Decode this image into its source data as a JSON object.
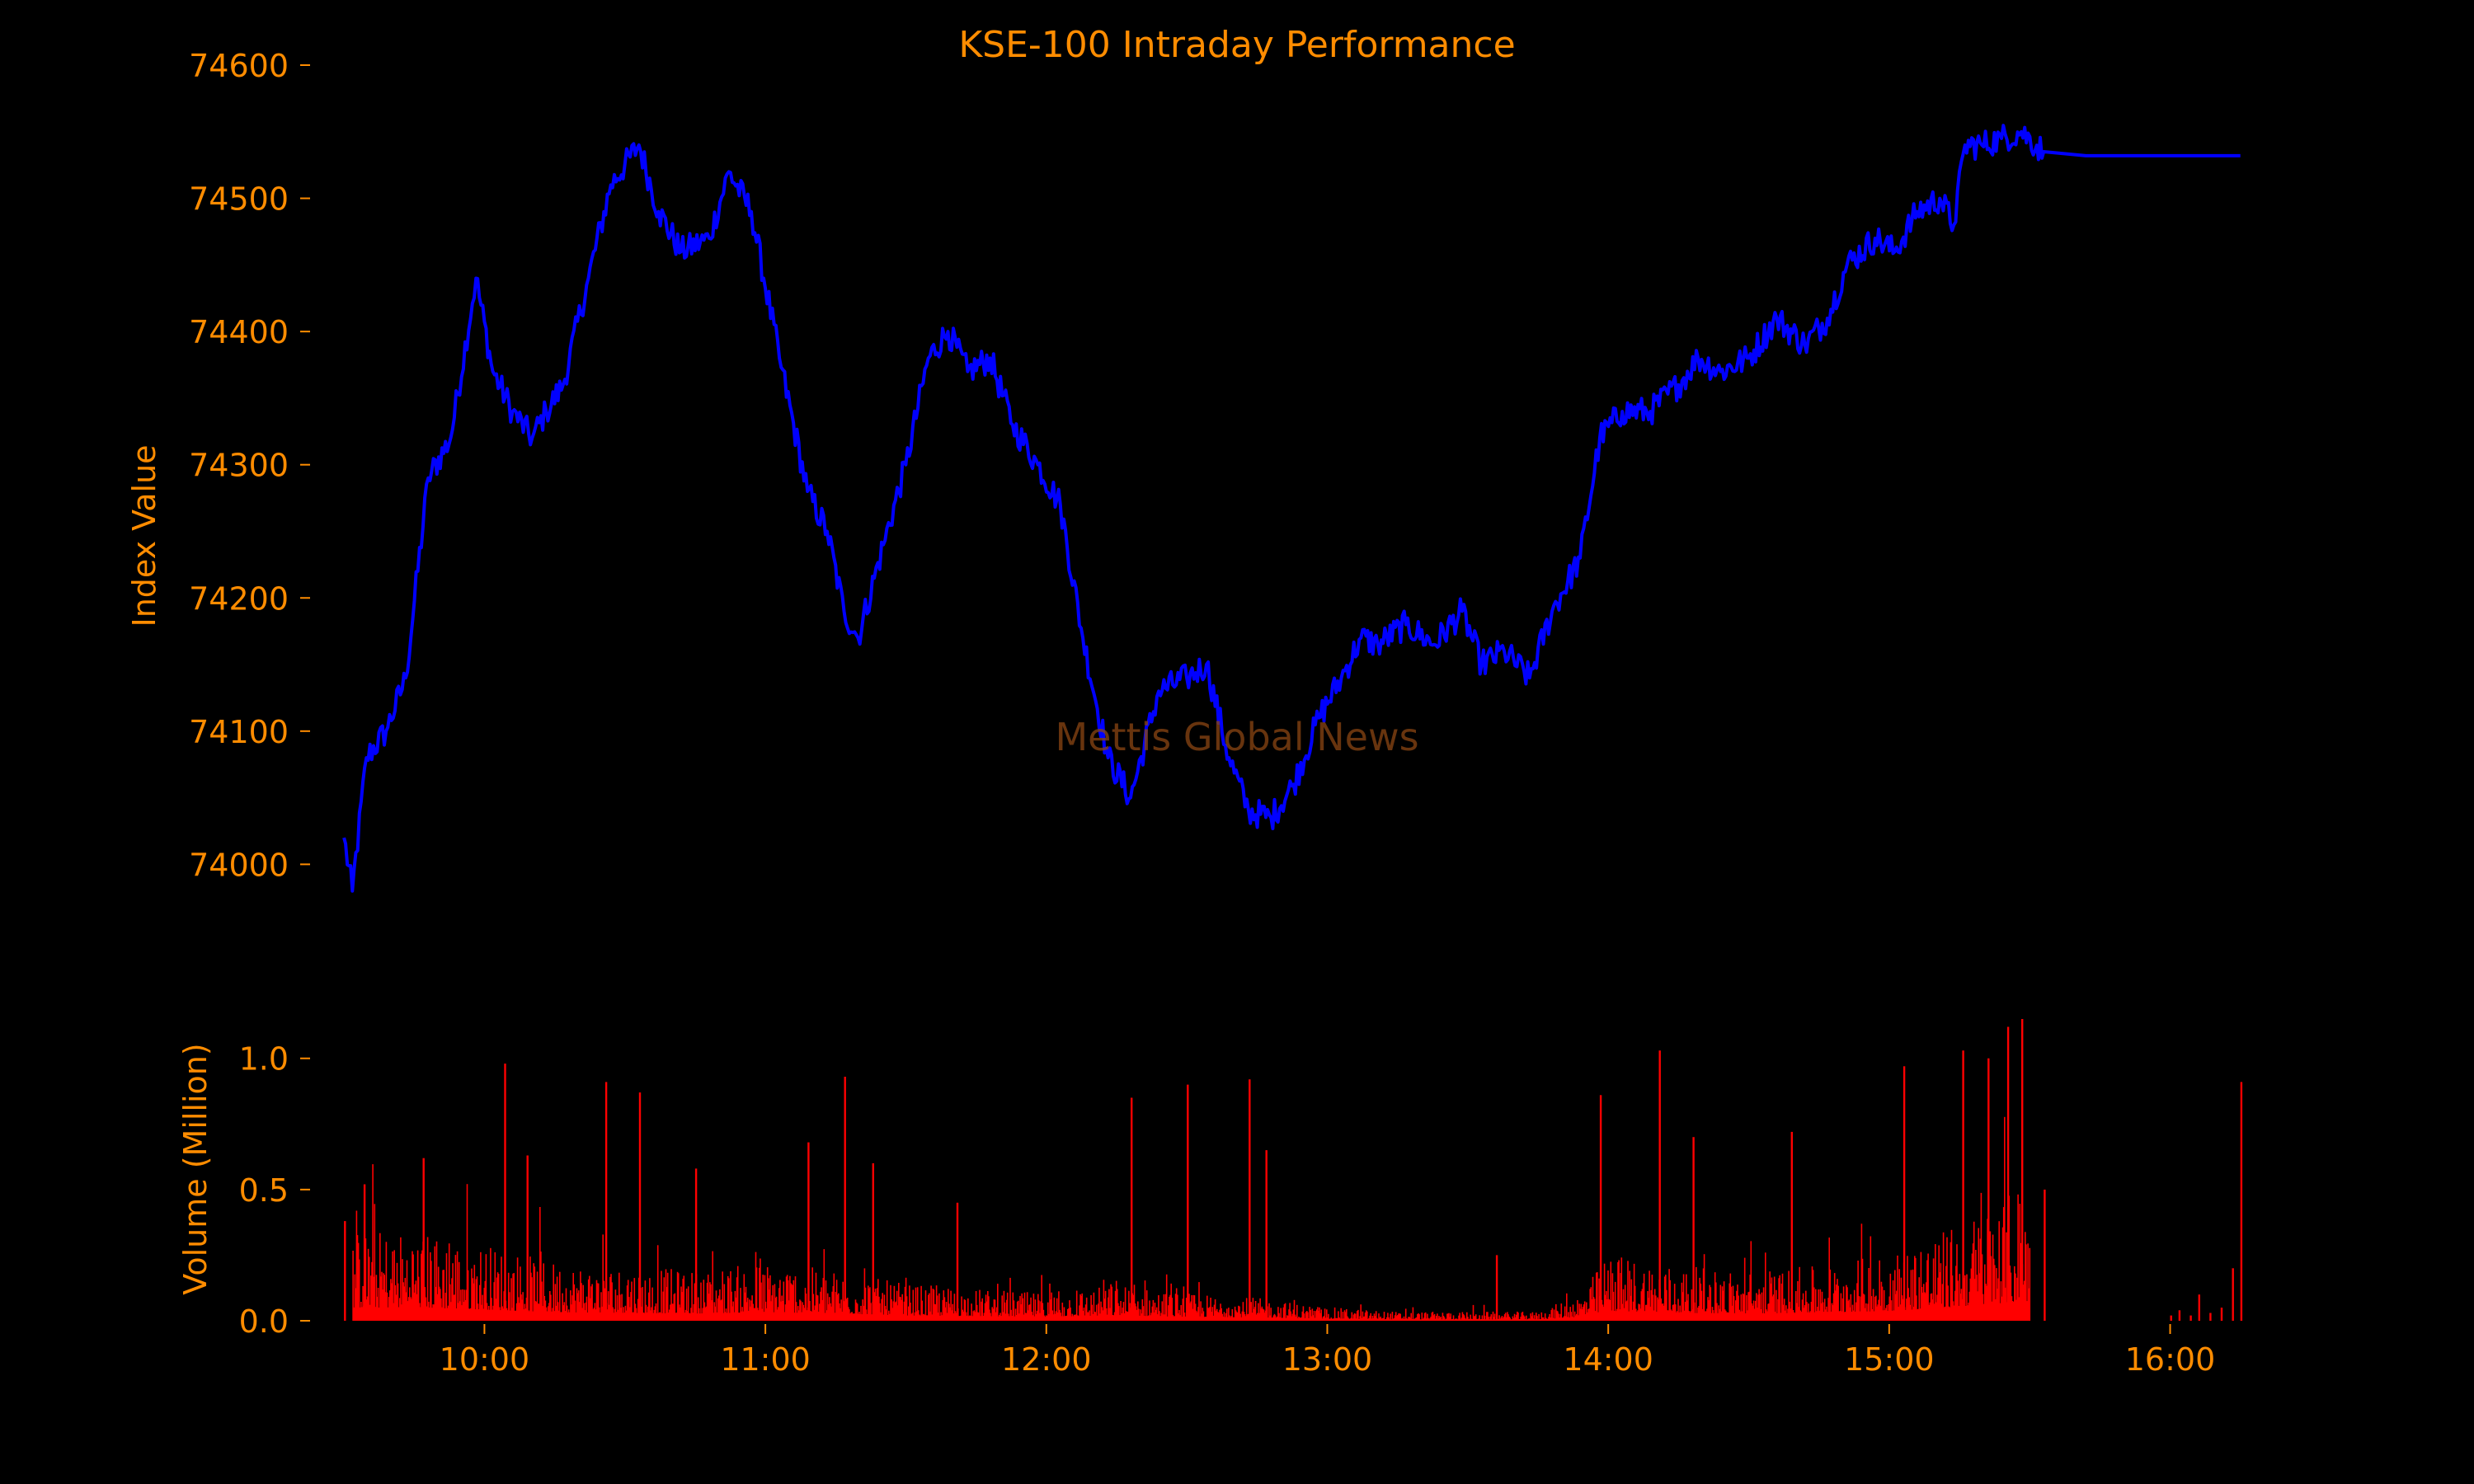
{
  "colors": {
    "background": "#000000",
    "text": "#FF8C00",
    "price_line": "#0000FF",
    "volume_bars": "#FF0000",
    "watermark": "#8B4513"
  },
  "watermark": "Mettis Global News",
  "chart_data": [
    {
      "type": "line",
      "title": "KSE-100 Intraday Performance",
      "xlabel": "",
      "ylabel": "Index Value",
      "ylim": [
        73960,
        74600
      ],
      "yticks": [
        74000,
        74100,
        74200,
        74300,
        74400,
        74500,
        74600
      ],
      "xlim_hours": [
        9.4,
        16.7
      ],
      "grid": false,
      "series": [
        {
          "x": [
            9.5,
            9.53,
            9.58,
            9.65,
            9.72,
            9.8,
            9.88,
            9.97,
            10.03,
            10.1,
            10.17,
            10.22,
            10.28,
            10.37,
            10.45,
            10.55,
            10.62,
            10.7,
            10.8,
            10.87,
            10.95,
            11.05,
            11.15,
            11.22,
            11.28,
            11.33,
            11.42,
            11.5,
            11.58,
            11.65,
            11.72,
            11.8,
            11.88,
            11.97,
            12.05,
            12.13,
            12.22,
            12.3,
            12.4,
            12.5,
            12.57,
            12.65,
            12.72,
            12.8,
            12.88,
            12.97,
            13.05,
            13.12,
            13.18,
            13.28,
            13.38,
            13.48,
            13.55,
            13.63,
            13.72,
            13.8,
            13.9,
            13.97,
            14.05,
            14.15,
            14.25,
            14.32,
            14.4,
            14.5,
            14.6,
            14.7,
            14.78,
            14.85,
            14.95,
            15.02,
            15.1,
            15.18,
            15.23,
            15.27,
            15.33,
            15.4,
            15.47,
            15.55,
            15.7,
            16.25
          ],
          "y": [
            74020,
            73980,
            74080,
            74100,
            74140,
            74290,
            74320,
            74440,
            74370,
            74340,
            74320,
            74340,
            74360,
            74440,
            74510,
            74540,
            74490,
            74460,
            74470,
            74520,
            74490,
            74380,
            74280,
            74250,
            74190,
            74170,
            74240,
            74300,
            74380,
            74400,
            74370,
            74380,
            74330,
            74300,
            74270,
            74170,
            74080,
            74050,
            74130,
            74140,
            74150,
            74080,
            74040,
            74035,
            74060,
            74110,
            74140,
            74170,
            74165,
            74180,
            74165,
            74190,
            74150,
            74160,
            74140,
            74190,
            74230,
            74320,
            74340,
            74340,
            74360,
            74380,
            74370,
            74380,
            74410,
            74390,
            74410,
            74450,
            74470,
            74460,
            74490,
            74500,
            74480,
            74540,
            74540,
            74545,
            74550,
            74535,
            74532,
            74532
          ]
        }
      ]
    },
    {
      "type": "bar",
      "title": "",
      "xlabel": "",
      "ylabel": "Volume (Million)",
      "ylim": [
        0,
        1.15
      ],
      "yticks": [
        0.0,
        0.5,
        1.0
      ],
      "yticklabels": [
        "0.0",
        "0.5",
        "1.0"
      ],
      "xticks": [
        10,
        11,
        12,
        13,
        14,
        15,
        16
      ],
      "xticklabels": [
        "10:00",
        "11:00",
        "12:00",
        "13:00",
        "14:00",
        "15:00",
        "16:00"
      ],
      "xlim_hours": [
        9.4,
        16.7
      ],
      "grid": false,
      "profile_x": [
        9.53,
        9.75,
        10.0,
        10.25,
        10.5,
        10.75,
        11.0,
        11.25,
        11.5,
        11.75,
        12.0,
        12.25,
        12.5,
        12.75,
        13.0,
        13.25,
        13.5,
        13.75,
        13.9,
        14.0,
        14.25,
        14.5,
        14.75,
        15.0,
        15.2,
        15.4,
        15.5
      ],
      "profile_y": [
        0.2,
        0.2,
        0.17,
        0.13,
        0.12,
        0.11,
        0.13,
        0.11,
        0.08,
        0.07,
        0.06,
        0.08,
        0.06,
        0.05,
        0.03,
        0.02,
        0.02,
        0.02,
        0.06,
        0.15,
        0.12,
        0.11,
        0.12,
        0.15,
        0.2,
        0.27,
        0.3
      ],
      "spikes": [
        {
          "x": 9.5,
          "y": 0.38
        },
        {
          "x": 9.57,
          "y": 0.52
        },
        {
          "x": 9.78,
          "y": 0.62
        },
        {
          "x": 10.07,
          "y": 0.98
        },
        {
          "x": 10.15,
          "y": 0.63
        },
        {
          "x": 10.43,
          "y": 0.91
        },
        {
          "x": 10.55,
          "y": 0.87
        },
        {
          "x": 10.75,
          "y": 0.58
        },
        {
          "x": 11.15,
          "y": 0.68
        },
        {
          "x": 11.28,
          "y": 0.93
        },
        {
          "x": 11.38,
          "y": 0.6
        },
        {
          "x": 11.68,
          "y": 0.45
        },
        {
          "x": 12.3,
          "y": 0.85
        },
        {
          "x": 12.5,
          "y": 0.9
        },
        {
          "x": 12.72,
          "y": 0.92
        },
        {
          "x": 12.78,
          "y": 0.65
        },
        {
          "x": 13.6,
          "y": 0.25
        },
        {
          "x": 13.97,
          "y": 0.86
        },
        {
          "x": 14.18,
          "y": 1.03
        },
        {
          "x": 14.3,
          "y": 0.7
        },
        {
          "x": 14.65,
          "y": 0.72
        },
        {
          "x": 15.05,
          "y": 0.97
        },
        {
          "x": 15.26,
          "y": 1.03
        },
        {
          "x": 15.35,
          "y": 1.0
        },
        {
          "x": 15.42,
          "y": 1.12
        },
        {
          "x": 15.47,
          "y": 1.15
        },
        {
          "x": 15.55,
          "y": 0.5
        },
        {
          "x": 16.25,
          "y": 0.91
        }
      ],
      "post_x": [
        16.0,
        16.03,
        16.07,
        16.1,
        16.14,
        16.18,
        16.22
      ],
      "post_y": [
        0.02,
        0.04,
        0.02,
        0.1,
        0.03,
        0.05,
        0.2
      ]
    }
  ]
}
